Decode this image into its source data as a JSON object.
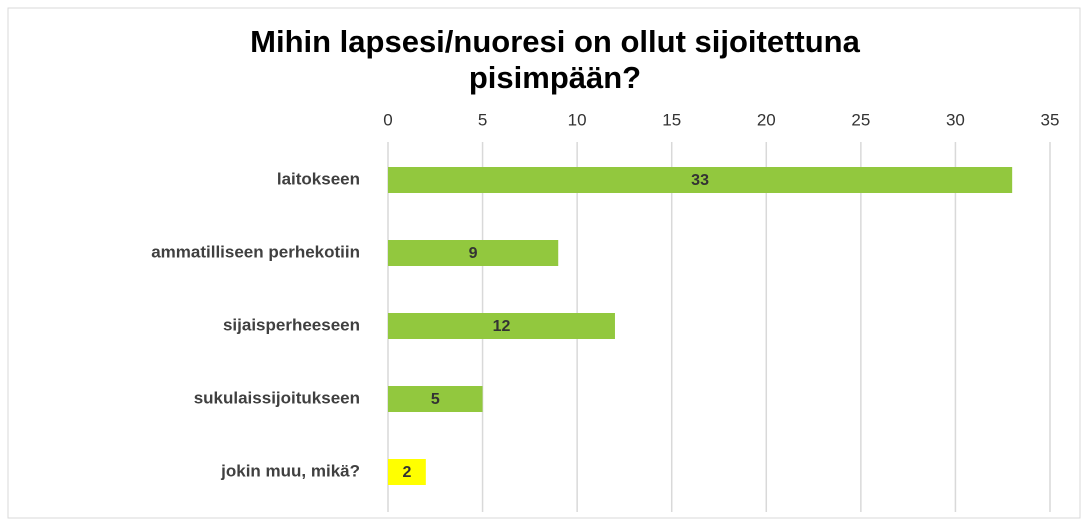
{
  "chart_data": {
    "type": "bar",
    "orientation": "horizontal",
    "title": "Mihin lapsesi/nuoresi on ollut sijoitettuna pisimpään?",
    "categories": [
      "laitokseen",
      "ammatilliseen perhekotiin",
      "sijaisperheeseen",
      "sukulaissijoitukseen",
      "jokin muu, mikä?"
    ],
    "values": [
      33,
      9,
      12,
      5,
      2
    ],
    "colors": [
      "#92c83e",
      "#92c83e",
      "#92c83e",
      "#92c83e",
      "#ffff00"
    ],
    "xlim": [
      0,
      35
    ],
    "xticks": [
      0,
      5,
      10,
      15,
      20,
      25,
      30,
      35
    ],
    "grid": true,
    "data_labels": true
  }
}
